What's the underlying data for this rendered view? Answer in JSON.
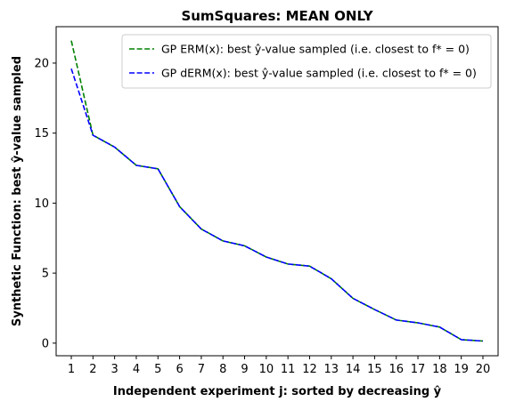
{
  "chart_data": {
    "type": "line",
    "title": "SumSquares: MEAN ONLY",
    "xlabel": "Independent experiment j: sorted by decreasing ŷ",
    "ylabel": "Synthetic Function: best ŷ-value sampled",
    "x": [
      1,
      2,
      3,
      4,
      5,
      6,
      7,
      8,
      9,
      10,
      11,
      12,
      13,
      14,
      15,
      16,
      17,
      18,
      19,
      20
    ],
    "xlim": [
      0.3,
      20.7
    ],
    "ylim": [
      -0.9,
      22.6
    ],
    "yticks": [
      0,
      5,
      10,
      15,
      20
    ],
    "legend_position": "top-right",
    "series": [
      {
        "name": "GP ERM(x):   best ŷ-value sampled (i.e. closest to f* = 0)",
        "color": "#008000",
        "dash": "dashed",
        "values": [
          21.6,
          14.85,
          14.0,
          12.7,
          12.45,
          9.75,
          8.15,
          7.3,
          6.95,
          6.15,
          5.65,
          5.5,
          4.6,
          3.2,
          2.4,
          1.65,
          1.45,
          1.15,
          0.25,
          0.15
        ]
      },
      {
        "name": "GP dERM(x): best ŷ-value sampled (i.e. closest to f* = 0)",
        "color": "#0000ff",
        "dash": "dashed",
        "values": [
          19.6,
          14.85,
          14.0,
          12.7,
          12.45,
          9.75,
          8.15,
          7.3,
          6.95,
          6.15,
          5.65,
          5.5,
          4.6,
          3.2,
          2.4,
          1.65,
          1.45,
          1.15,
          0.25,
          0.15
        ]
      }
    ]
  }
}
